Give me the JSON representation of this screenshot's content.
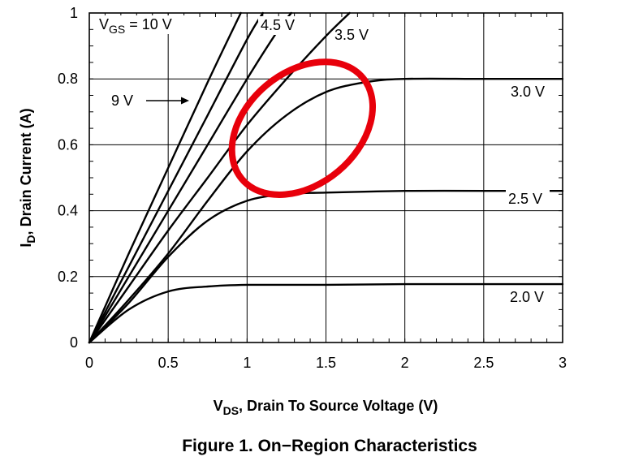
{
  "chart_data": {
    "type": "line",
    "title": "",
    "caption": "Figure 1. On−Region Characteristics",
    "xlabel": {
      "main": "V",
      "sub": "DS",
      "rest": ", Drain To Source Voltage (V)"
    },
    "ylabel": {
      "main": "I",
      "sub": "D",
      "rest": ", Drain Current (A)"
    },
    "xlim": [
      0,
      3
    ],
    "ylim": [
      0,
      1
    ],
    "xticks": [
      0,
      0.5,
      1,
      1.5,
      2,
      2.5,
      3
    ],
    "xtick_labels": [
      "0",
      "0.5",
      "1",
      "1.5",
      "2",
      "2.5",
      "3"
    ],
    "yticks": [
      0,
      0.2,
      0.4,
      0.6,
      0.8,
      1
    ],
    "ytick_labels": [
      "0",
      "0.2",
      "0.4",
      "0.6",
      "0.8",
      "1"
    ],
    "grid": true,
    "legend": "none",
    "series": [
      {
        "name": "10 V",
        "x": [
          0,
          0.25,
          0.5,
          0.75,
          0.96
        ],
        "y": [
          0,
          0.27,
          0.53,
          0.79,
          1.0
        ]
      },
      {
        "name": "9 V",
        "x": [
          0,
          0.25,
          0.5,
          0.75,
          1.0,
          1.1
        ],
        "y": [
          0,
          0.23,
          0.46,
          0.69,
          0.92,
          1.0
        ]
      },
      {
        "name": "4.5 V",
        "x": [
          0,
          0.25,
          0.5,
          0.75,
          1.0,
          1.2,
          1.28
        ],
        "y": [
          0,
          0.2,
          0.4,
          0.6,
          0.8,
          0.95,
          1.0
        ]
      },
      {
        "name": "3.5 V",
        "x": [
          0,
          0.25,
          0.5,
          0.75,
          1.0,
          1.25,
          1.5,
          1.65
        ],
        "y": [
          0,
          0.17,
          0.34,
          0.5,
          0.66,
          0.8,
          0.93,
          1.0
        ]
      },
      {
        "name": "3.0 V",
        "x": [
          0,
          0.25,
          0.5,
          0.75,
          1.0,
          1.25,
          1.5,
          1.75,
          2.0,
          2.5,
          3.0
        ],
        "y": [
          0,
          0.13,
          0.27,
          0.43,
          0.58,
          0.69,
          0.76,
          0.79,
          0.8,
          0.8,
          0.8
        ]
      },
      {
        "name": "2.5 V",
        "x": [
          0,
          0.25,
          0.5,
          0.75,
          1.0,
          1.25,
          1.5,
          2.0,
          2.5,
          3.0
        ],
        "y": [
          0,
          0.12,
          0.26,
          0.37,
          0.43,
          0.45,
          0.455,
          0.46,
          0.46,
          0.46
        ]
      },
      {
        "name": "2.0 V",
        "x": [
          0,
          0.25,
          0.5,
          0.75,
          1.0,
          1.5,
          2.0,
          2.5,
          3.0
        ],
        "y": [
          0,
          0.1,
          0.155,
          0.17,
          0.175,
          0.175,
          0.177,
          0.177,
          0.177
        ]
      }
    ],
    "annotations": [
      {
        "id": "vgs10",
        "parts": [
          {
            "t": "V"
          },
          {
            "t": "GS",
            "sub": true
          },
          {
            "t": " = 10 V"
          }
        ]
      },
      {
        "id": "vgs9",
        "parts": [
          {
            "t": "9 V"
          }
        ],
        "arrow": true
      },
      {
        "id": "vgs45",
        "parts": [
          {
            "t": "4.5 V"
          }
        ]
      },
      {
        "id": "vgs35",
        "parts": [
          {
            "t": "3.5 V"
          }
        ]
      },
      {
        "id": "vgs30",
        "parts": [
          {
            "t": "3.0 V"
          }
        ]
      },
      {
        "id": "vgs25",
        "parts": [
          {
            "t": "2.5 V"
          }
        ]
      },
      {
        "id": "vgs20",
        "parts": [
          {
            "t": "2.0 V"
          }
        ]
      }
    ],
    "highlight": {
      "shape": "ellipse",
      "color": "#e8000b",
      "center": [
        1.35,
        0.65
      ],
      "rx": 0.5,
      "ry": 0.17,
      "rotation_deg": -40
    }
  }
}
